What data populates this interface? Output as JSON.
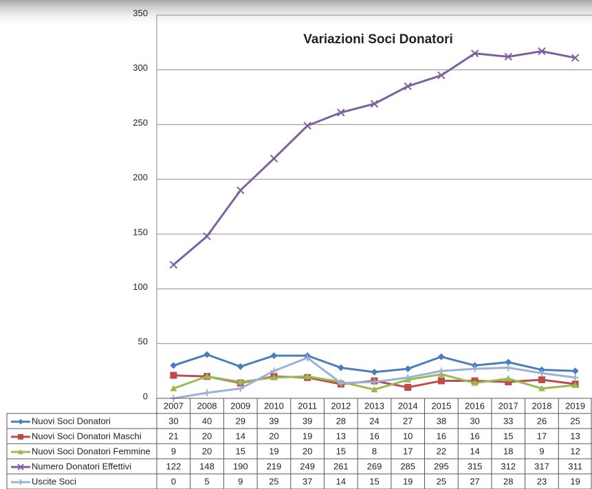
{
  "chart_data": {
    "type": "line",
    "title": "Variazioni Soci Donatori",
    "categories": [
      "2007",
      "2008",
      "2009",
      "2010",
      "2011",
      "2012",
      "2013",
      "2014",
      "2015",
      "2016",
      "2017",
      "2018",
      "2019"
    ],
    "ylim": [
      0,
      350
    ],
    "yticks": [
      0,
      50,
      100,
      150,
      200,
      250,
      300,
      350
    ],
    "grid": true,
    "series": [
      {
        "name": "Nuovi Soci Donatori",
        "color": "#4a7ebb",
        "marker": "diamond",
        "values": [
          30,
          40,
          29,
          39,
          39,
          28,
          24,
          27,
          38,
          30,
          33,
          26,
          25
        ]
      },
      {
        "name": "Nuovi Soci Donatori Maschi",
        "color": "#be4b48",
        "marker": "square",
        "values": [
          21,
          20,
          14,
          20,
          19,
          13,
          16,
          10,
          16,
          16,
          15,
          17,
          13
        ]
      },
      {
        "name": "Nuovi Soci Donatori Femmine",
        "color": "#98b954",
        "marker": "triangle",
        "values": [
          9,
          20,
          15,
          19,
          20,
          15,
          8,
          17,
          22,
          14,
          18,
          9,
          12
        ]
      },
      {
        "name": "Numero Donatori Effettivi",
        "color": "#7d60a0",
        "marker": "x",
        "values": [
          122,
          148,
          190,
          219,
          249,
          261,
          269,
          285,
          295,
          315,
          312,
          317,
          311
        ]
      },
      {
        "name": "Uscite Soci",
        "color": "#9bb0d9",
        "marker": "plus",
        "values": [
          0,
          5,
          9,
          25,
          37,
          14,
          15,
          19,
          25,
          27,
          28,
          23,
          19
        ]
      }
    ]
  }
}
